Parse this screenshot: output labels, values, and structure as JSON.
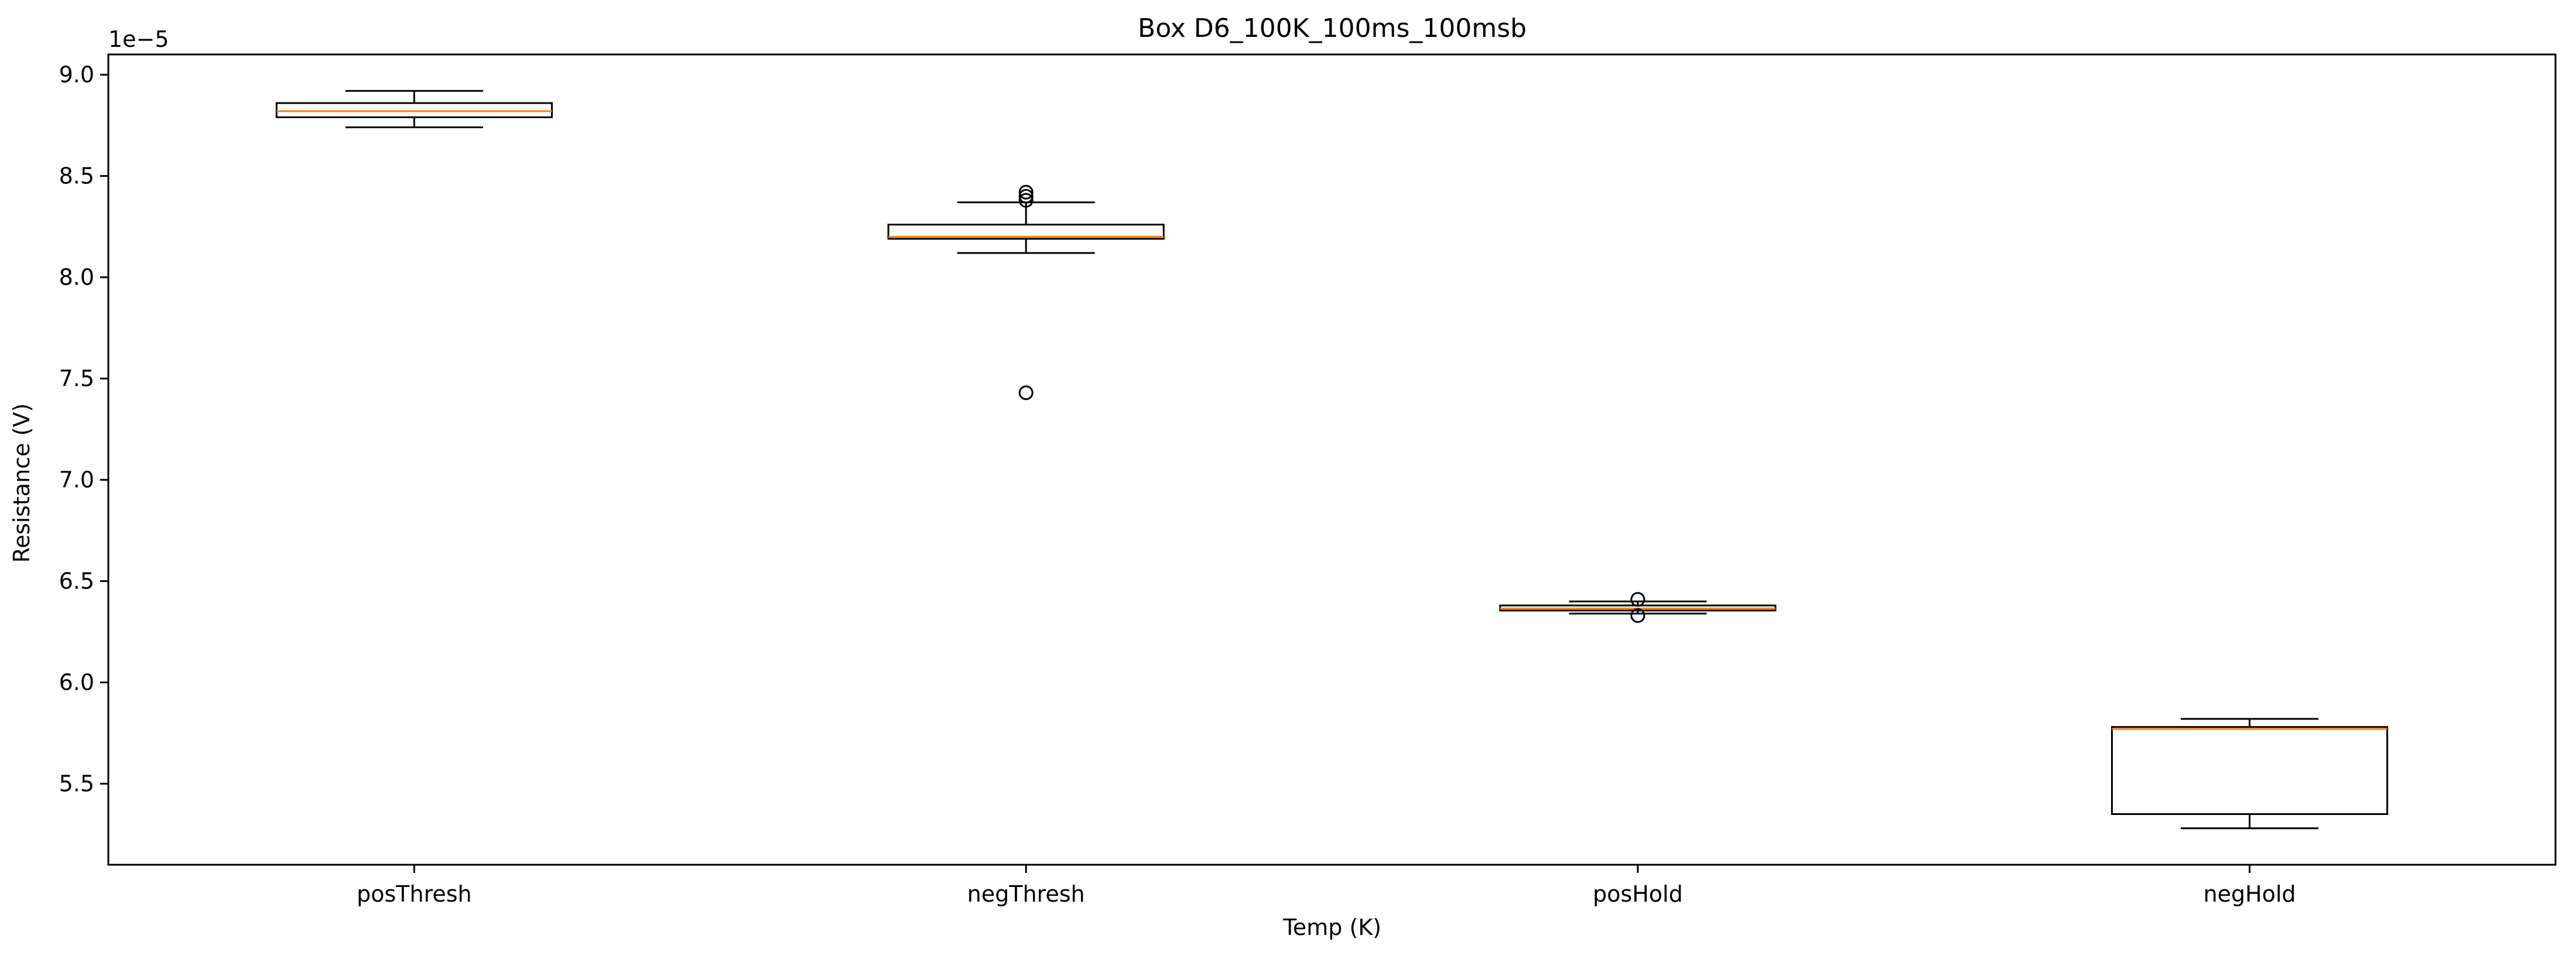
{
  "chart_data": {
    "type": "box",
    "title": "Box D6_100K_100ms_100msb",
    "xlabel": "Temp (K)",
    "ylabel": "Resistance (V)",
    "y_offset_label": "1e−5",
    "ylim": [
      5.1,
      9.1
    ],
    "yticks": [
      5.5,
      6.0,
      6.5,
      7.0,
      7.5,
      8.0,
      8.5,
      9.0
    ],
    "ytick_labels": [
      "5.5",
      "6.0",
      "6.5",
      "7.0",
      "7.5",
      "8.0",
      "8.5",
      "9.0"
    ],
    "grid": false,
    "categories": [
      "posThresh",
      "negThresh",
      "posHold",
      "negHold"
    ],
    "boxes": [
      {
        "whisker_low": 8.74,
        "q1": 8.79,
        "median": 8.82,
        "q3": 8.86,
        "whisker_high": 8.92,
        "fliers": []
      },
      {
        "whisker_low": 8.12,
        "q1": 8.19,
        "median": 8.2,
        "q3": 8.26,
        "whisker_high": 8.37,
        "fliers": [
          8.42,
          8.4,
          8.38,
          7.43
        ]
      },
      {
        "whisker_low": 6.34,
        "q1": 6.355,
        "median": 6.365,
        "q3": 6.38,
        "whisker_high": 6.4,
        "fliers": [
          6.41,
          6.33
        ]
      },
      {
        "whisker_low": 5.28,
        "q1": 5.35,
        "median": 5.77,
        "q3": 5.78,
        "whisker_high": 5.82,
        "fliers": []
      }
    ],
    "colors": {
      "box": "#000000",
      "median": "#ff7f0e",
      "flier_edge": "#000000"
    }
  }
}
